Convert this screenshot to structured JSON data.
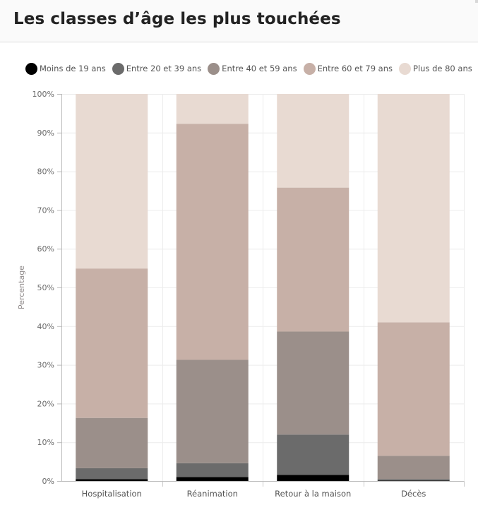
{
  "header": {
    "title": "Les classes d’âge les plus touchées"
  },
  "chart_data": {
    "type": "bar",
    "stacked": true,
    "title": "Les classes d’âge les plus touchées",
    "xlabel": "",
    "ylabel": "Percentage",
    "ylim": [
      0,
      100
    ],
    "ytick_values": [
      0,
      10,
      20,
      30,
      40,
      50,
      60,
      70,
      80,
      90,
      100
    ],
    "ytick_labels": [
      "0%",
      "10%",
      "20%",
      "30%",
      "40%",
      "50%",
      "60%",
      "70%",
      "80%",
      "90%",
      "100%"
    ],
    "grid": true,
    "legend_position": "top",
    "categories": [
      "Hospitalisation",
      "Réanimation",
      "Retour à la maison",
      "Décès"
    ],
    "series": [
      {
        "name": "Moins de 19 ans",
        "color": "#000000",
        "values": [
          0.5,
          1.0,
          1.6,
          0.1
        ]
      },
      {
        "name": "Entre 20 et 39 ans",
        "color": "#6b6b6b",
        "values": [
          2.8,
          3.6,
          10.4,
          0.4
        ]
      },
      {
        "name": "Entre 40 et 59 ans",
        "color": "#9b8f8a",
        "values": [
          13.0,
          26.7,
          26.6,
          6.0
        ]
      },
      {
        "name": "Entre 60 et 79 ans",
        "color": "#c7b0a7",
        "values": [
          38.6,
          61.0,
          37.2,
          34.5
        ]
      },
      {
        "name": "Plus de 80 ans",
        "color": "#e8dad2",
        "values": [
          45.1,
          7.7,
          24.2,
          59.0
        ]
      }
    ]
  }
}
